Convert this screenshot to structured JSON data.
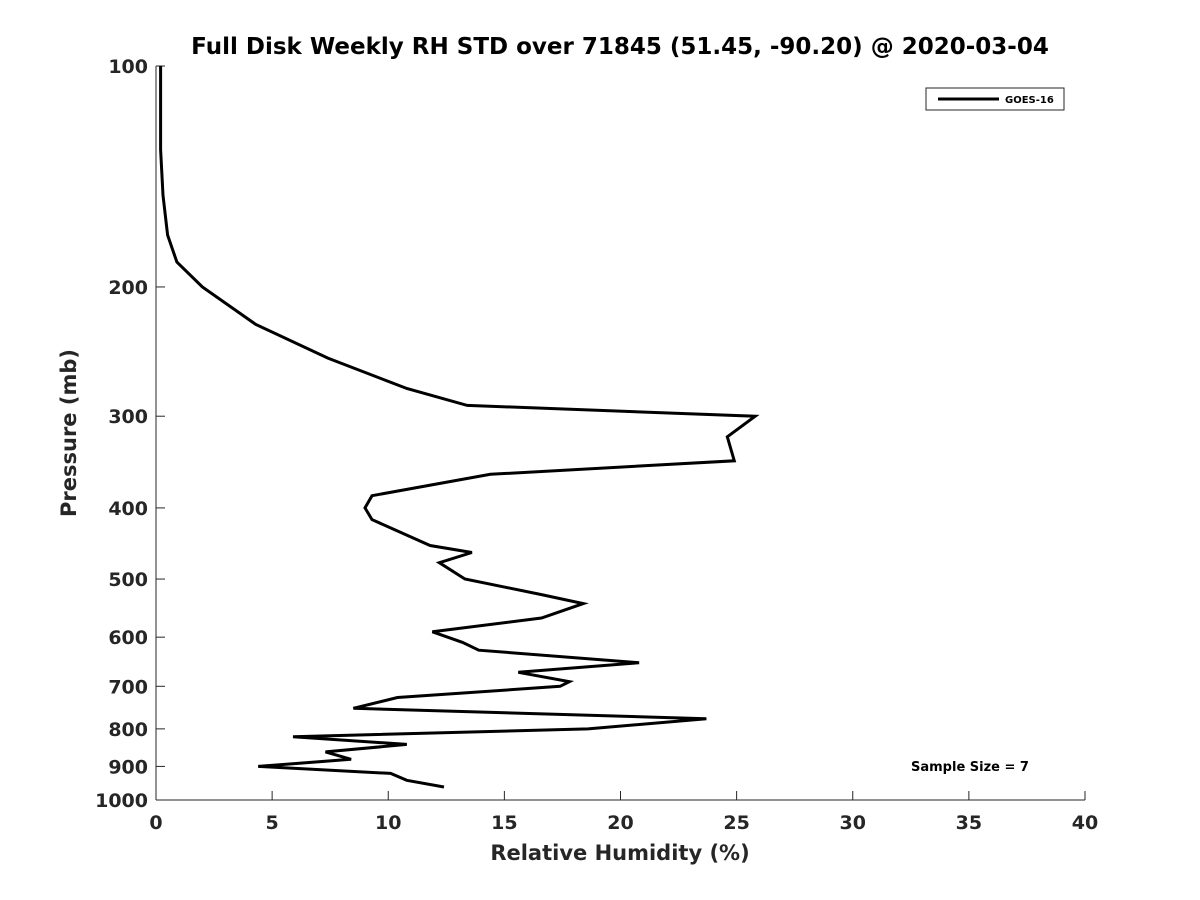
{
  "chart_data": {
    "type": "line",
    "title": "Full Disk Weekly RH STD over 71845 (51.45, -90.20) @ 2020-03-04",
    "xlabel": "Relative Humidity (%)",
    "ylabel": "Pressure (mb)",
    "xlim": [
      0,
      40
    ],
    "ylim": [
      100,
      1000
    ],
    "y_scale": "log",
    "y_reversed": true,
    "x_ticks": [
      "0",
      "5",
      "10",
      "15",
      "20",
      "25",
      "30",
      "35",
      "40"
    ],
    "y_ticks": [
      "100",
      "200",
      "300",
      "400",
      "500",
      "600",
      "700",
      "800",
      "900",
      "1000"
    ],
    "grid": false,
    "legend": {
      "position": "top-right",
      "entries": [
        "GOES-16"
      ]
    },
    "annotation": "Sample Size = 7",
    "series": [
      {
        "name": "GOES-16",
        "color": "#000000",
        "points": [
          [
            0.2,
            100
          ],
          [
            0.2,
            115
          ],
          [
            0.2,
            130
          ],
          [
            0.3,
            150
          ],
          [
            0.5,
            170
          ],
          [
            0.9,
            185
          ],
          [
            2.0,
            200
          ],
          [
            4.3,
            225
          ],
          [
            7.4,
            250
          ],
          [
            10.8,
            275
          ],
          [
            13.4,
            290
          ],
          [
            25.8,
            300
          ],
          [
            24.6,
            320
          ],
          [
            24.9,
            345
          ],
          [
            14.4,
            360
          ],
          [
            9.3,
            385
          ],
          [
            9.0,
            400
          ],
          [
            9.3,
            415
          ],
          [
            11.8,
            450
          ],
          [
            13.6,
            460
          ],
          [
            12.2,
            475
          ],
          [
            13.3,
            500
          ],
          [
            16.6,
            525
          ],
          [
            18.4,
            540
          ],
          [
            16.6,
            565
          ],
          [
            11.9,
            590
          ],
          [
            13.2,
            610
          ],
          [
            13.9,
            625
          ],
          [
            20.8,
            650
          ],
          [
            15.6,
            670
          ],
          [
            17.8,
            690
          ],
          [
            17.4,
            700
          ],
          [
            10.4,
            725
          ],
          [
            8.5,
            750
          ],
          [
            23.7,
            775
          ],
          [
            18.6,
            800
          ],
          [
            5.9,
            820
          ],
          [
            10.8,
            840
          ],
          [
            7.3,
            860
          ],
          [
            8.4,
            880
          ],
          [
            4.4,
            900
          ],
          [
            10.1,
            920
          ],
          [
            10.8,
            940
          ],
          [
            12.4,
            960
          ]
        ]
      }
    ]
  }
}
